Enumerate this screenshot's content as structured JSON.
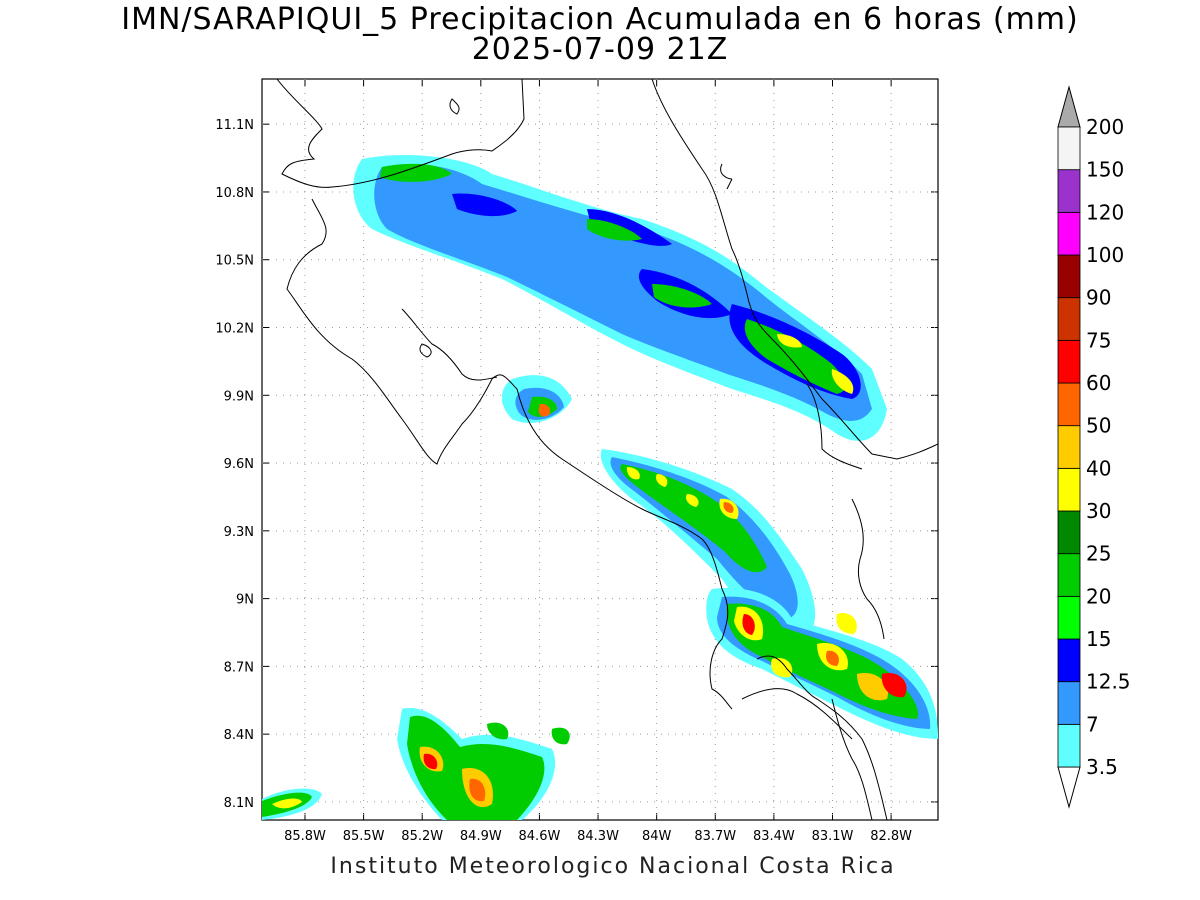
{
  "title": {
    "line1": "IMN/SARAPIQUI_5 Precipitacion Acumulada en 6 horas (mm)",
    "line2": "2025-07-09 21Z"
  },
  "credit": "Instituto Meteorologico Nacional Costa Rica",
  "map": {
    "lon_range": [
      -86.02,
      -82.56
    ],
    "lat_range": [
      8.02,
      11.3
    ],
    "lat_ticks": [
      {
        "value": 8.1,
        "label": "8.1N"
      },
      {
        "value": 8.4,
        "label": "8.4N"
      },
      {
        "value": 8.7,
        "label": "8.7N"
      },
      {
        "value": 9.0,
        "label": "9N"
      },
      {
        "value": 9.3,
        "label": "9.3N"
      },
      {
        "value": 9.6,
        "label": "9.6N"
      },
      {
        "value": 9.9,
        "label": "9.9N"
      },
      {
        "value": 10.2,
        "label": "10.2N"
      },
      {
        "value": 10.5,
        "label": "10.5N"
      },
      {
        "value": 10.8,
        "label": "10.8N"
      },
      {
        "value": 11.1,
        "label": "11.1N"
      }
    ],
    "lon_ticks": [
      {
        "value": -85.8,
        "label": "85.8W"
      },
      {
        "value": -85.5,
        "label": "85.5W"
      },
      {
        "value": -85.2,
        "label": "85.2W"
      },
      {
        "value": -84.9,
        "label": "84.9W"
      },
      {
        "value": -84.6,
        "label": "84.6W"
      },
      {
        "value": -84.3,
        "label": "84.3W"
      },
      {
        "value": -84.0,
        "label": "84W"
      },
      {
        "value": -83.7,
        "label": "83.7W"
      },
      {
        "value": -83.4,
        "label": "83.4W"
      },
      {
        "value": -83.1,
        "label": "83.1W"
      },
      {
        "value": -82.8,
        "label": "82.8W"
      }
    ],
    "grid": true
  },
  "colorbar": {
    "units": "mm",
    "levels": [
      {
        "label": "3.5",
        "color": "#60ffff"
      },
      {
        "label": "7",
        "color": "#3399ff"
      },
      {
        "label": "12.5",
        "color": "#0000ff"
      },
      {
        "label": "15",
        "color": "#00ff00"
      },
      {
        "label": "20",
        "color": "#00cc00"
      },
      {
        "label": "25",
        "color": "#008800"
      },
      {
        "label": "30",
        "color": "#ffff00"
      },
      {
        "label": "40",
        "color": "#ffcc00"
      },
      {
        "label": "50",
        "color": "#ff6600"
      },
      {
        "label": "60",
        "color": "#ff0000"
      },
      {
        "label": "75",
        "color": "#cc3300"
      },
      {
        "label": "90",
        "color": "#990000"
      },
      {
        "label": "100",
        "color": "#ff00ff"
      },
      {
        "label": "120",
        "color": "#9933cc"
      },
      {
        "label": "150",
        "color": "#f4f4f4"
      },
      {
        "label": "200",
        "color": "#aaaaaa"
      }
    ]
  }
}
